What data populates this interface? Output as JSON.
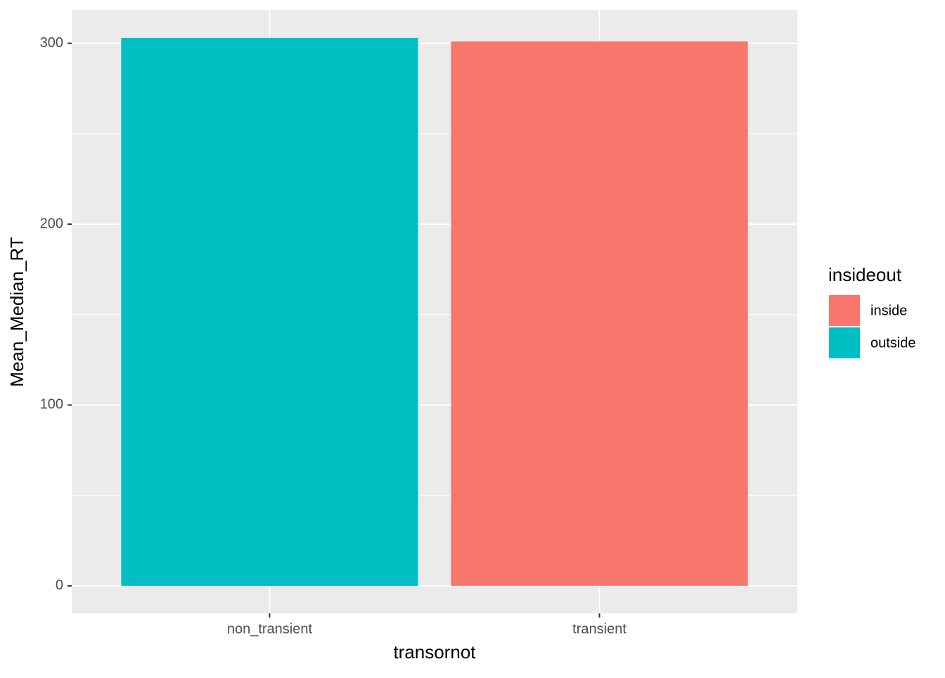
{
  "chart_data": {
    "type": "bar",
    "x_label": "transornot",
    "y_label": "Mean_Median_RT",
    "categories": [
      "non_transient",
      "transient"
    ],
    "series": [
      {
        "name": "inside",
        "color": "#F8766D",
        "values": [
          null,
          301
        ]
      },
      {
        "name": "outside",
        "color": "#00BFC4",
        "values": [
          303,
          null
        ]
      }
    ],
    "legend_title": "insideout",
    "ylim": [
      -15.2,
      318.5
    ],
    "yticks": [
      0,
      100,
      200,
      300
    ],
    "yminor": [
      50,
      150,
      250
    ],
    "grid": true,
    "legend_position": "right",
    "bar_overlap": true
  }
}
